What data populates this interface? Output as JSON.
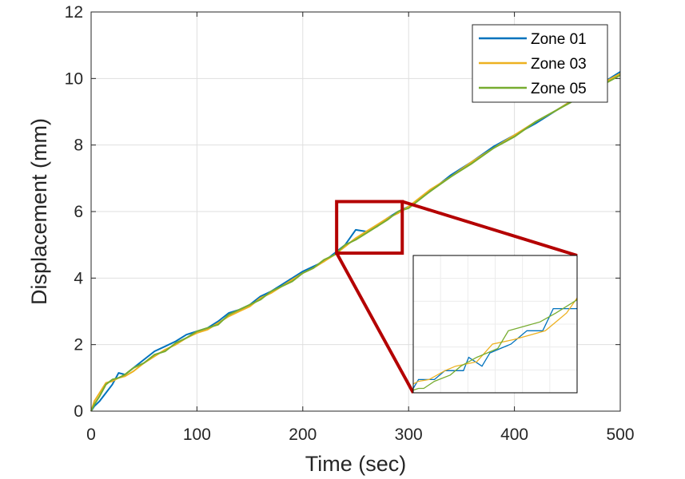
{
  "chart_data": {
    "type": "line",
    "title": "",
    "xlabel": "Time (sec)",
    "ylabel": "Displacement (mm)",
    "xlim": [
      0,
      500
    ],
    "ylim": [
      0,
      12
    ],
    "xticks": [
      0,
      100,
      200,
      300,
      400,
      500
    ],
    "yticks": [
      0,
      2,
      4,
      6,
      8,
      10,
      12
    ],
    "xtick_labels": [
      "0",
      "100",
      "200",
      "300",
      "400",
      "500"
    ],
    "ytick_labels": [
      "0",
      "2",
      "4",
      "6",
      "8",
      "10",
      "12"
    ],
    "grid": true,
    "legend_position": "top-right",
    "series": [
      {
        "name": "Zone 01",
        "color": "#0072BD",
        "x": [
          0,
          3,
          8,
          14,
          20,
          26,
          32,
          40,
          50,
          60,
          70,
          80,
          90,
          100,
          110,
          120,
          130,
          140,
          150,
          160,
          170,
          180,
          190,
          200,
          210,
          220,
          230,
          240,
          250,
          260,
          270,
          280,
          290,
          300,
          320,
          340,
          360,
          380,
          400,
          420,
          440,
          460,
          480,
          500
        ],
        "y": [
          0,
          0.15,
          0.3,
          0.55,
          0.8,
          1.15,
          1.1,
          1.3,
          1.55,
          1.8,
          1.95,
          2.1,
          2.3,
          2.4,
          2.5,
          2.7,
          2.95,
          3.05,
          3.2,
          3.45,
          3.6,
          3.8,
          4.0,
          4.2,
          4.35,
          4.5,
          4.75,
          5.0,
          5.45,
          5.4,
          5.55,
          5.8,
          6.0,
          6.15,
          6.6,
          7.1,
          7.5,
          7.95,
          8.3,
          8.65,
          9.05,
          9.45,
          9.8,
          10.2
        ]
      },
      {
        "name": "Zone 03",
        "color": "#EDB120",
        "x": [
          0,
          3,
          8,
          14,
          20,
          26,
          32,
          40,
          50,
          60,
          70,
          80,
          90,
          100,
          110,
          120,
          130,
          140,
          150,
          160,
          170,
          180,
          190,
          200,
          210,
          220,
          230,
          240,
          250,
          260,
          270,
          280,
          290,
          300,
          320,
          340,
          360,
          380,
          400,
          420,
          440,
          460,
          480,
          500
        ],
        "y": [
          0,
          0.3,
          0.55,
          0.85,
          0.9,
          1.0,
          1.05,
          1.2,
          1.45,
          1.65,
          1.85,
          2.0,
          2.2,
          2.35,
          2.45,
          2.65,
          2.85,
          3.0,
          3.15,
          3.4,
          3.55,
          3.75,
          3.95,
          4.15,
          4.3,
          4.5,
          4.7,
          4.95,
          5.2,
          5.4,
          5.6,
          5.8,
          5.95,
          6.15,
          6.65,
          7.05,
          7.5,
          7.9,
          8.3,
          8.7,
          9.05,
          9.45,
          9.8,
          10.15
        ]
      },
      {
        "name": "Zone 05",
        "color": "#77AC30",
        "x": [
          0,
          3,
          8,
          14,
          20,
          26,
          32,
          40,
          50,
          60,
          70,
          80,
          90,
          100,
          110,
          120,
          130,
          140,
          150,
          160,
          170,
          180,
          190,
          200,
          210,
          220,
          230,
          240,
          250,
          260,
          270,
          280,
          290,
          300,
          320,
          340,
          360,
          380,
          400,
          420,
          440,
          460,
          480,
          500
        ],
        "y": [
          0,
          0.2,
          0.45,
          0.8,
          0.95,
          1.0,
          1.1,
          1.3,
          1.45,
          1.7,
          1.8,
          2.05,
          2.2,
          2.4,
          2.5,
          2.6,
          2.9,
          3.05,
          3.2,
          3.35,
          3.6,
          3.75,
          3.9,
          4.15,
          4.3,
          4.55,
          4.7,
          5.0,
          5.15,
          5.35,
          5.55,
          5.75,
          6.0,
          6.1,
          6.6,
          7.05,
          7.45,
          7.9,
          8.25,
          8.7,
          9.05,
          9.4,
          9.75,
          10.1
        ]
      }
    ],
    "zoom_region": {
      "x": [
        232,
        294
      ],
      "y": [
        4.75,
        6.3
      ]
    },
    "inset": {
      "x": [
        232,
        294
      ],
      "y": [
        4.75,
        6.3
      ],
      "series": [
        {
          "name": "Zone 01",
          "x": [
            232,
            234,
            240,
            244,
            251,
            253,
            258,
            261,
            265,
            269,
            275,
            281,
            285,
            294
          ],
          "y": [
            4.8,
            4.9,
            4.9,
            5.0,
            5.0,
            5.15,
            5.05,
            5.2,
            5.25,
            5.3,
            5.45,
            5.45,
            5.7,
            5.7
          ]
        },
        {
          "name": "Zone 03",
          "x": [
            232,
            234,
            238,
            244,
            248,
            256,
            262,
            270,
            276,
            282,
            286,
            290,
            294
          ],
          "y": [
            4.85,
            4.88,
            4.9,
            5.0,
            5.05,
            5.1,
            5.3,
            5.35,
            5.4,
            5.45,
            5.55,
            5.65,
            5.82
          ]
        },
        {
          "name": "Zone 05",
          "x": [
            232,
            234,
            236,
            240,
            246,
            250,
            256,
            260,
            264,
            268,
            274,
            280,
            286,
            294
          ],
          "y": [
            4.78,
            4.8,
            4.8,
            4.88,
            4.95,
            5.05,
            5.15,
            5.2,
            5.25,
            5.45,
            5.5,
            5.55,
            5.65,
            5.8
          ]
        }
      ]
    }
  }
}
